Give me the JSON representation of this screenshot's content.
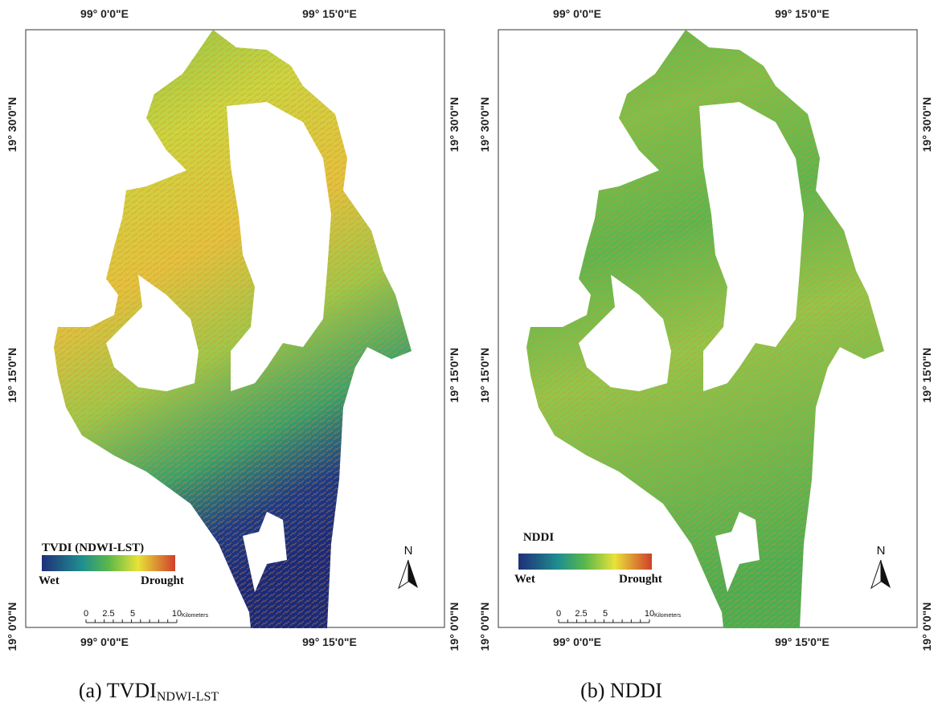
{
  "panels": [
    {
      "top_labels": [
        "99° 0'0\"E",
        "99° 15'0\"E"
      ],
      "bottom_labels": [
        "99° 0'0\"E",
        "99° 15'0\"E"
      ],
      "left_labels": [
        "19° 30'0\"N",
        "19° 15'0\"N",
        "19° 0'0\"N"
      ],
      "right_labels": [
        "19° 30'0\"N",
        "19° 15'0\"N",
        "19° 0'0\"N"
      ],
      "legend": {
        "title": "TVDI (NDWI-LST)",
        "low": "Wet",
        "high": "Drought"
      },
      "scale_bar": {
        "ticks": [
          "0",
          "2.5",
          "5",
          "10"
        ],
        "unit": "Kilometers"
      },
      "north": "N",
      "caption": {
        "text": "(a) TVDI",
        "subscript": "NDWI-LST"
      }
    },
    {
      "top_labels": [
        "99° 0'0\"E",
        "99° 15'0\"E"
      ],
      "bottom_labels": [
        "99° 0'0\"E",
        "99° 15'0\"E"
      ],
      "left_labels": [
        "19° 30'0\"N",
        "19° 15'0\"N",
        "19° 0'0\"N"
      ],
      "right_labels": [
        "19° 30'0\"N",
        "19° 15'0\"N",
        "19° 0'0\"N"
      ],
      "legend": {
        "title": "NDDI",
        "low": "Wet",
        "high": "Drought"
      },
      "scale_bar": {
        "ticks": [
          "0",
          "2.5",
          "5",
          "10"
        ],
        "unit": "Kilometers"
      },
      "north": "N",
      "caption": {
        "text": "(b) NDDI"
      }
    }
  ]
}
